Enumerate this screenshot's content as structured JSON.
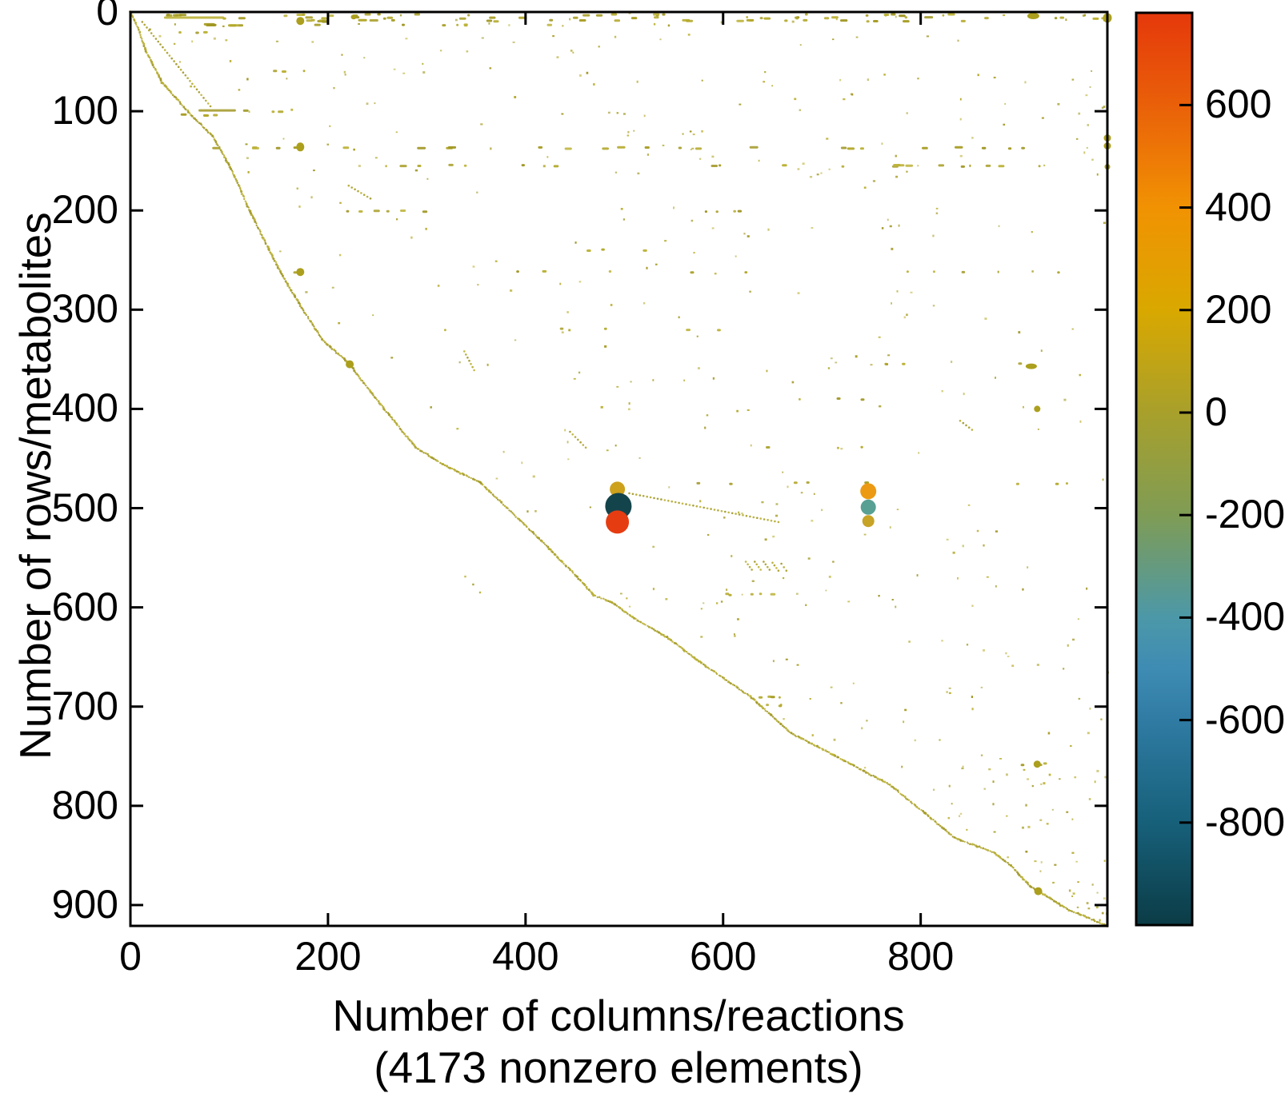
{
  "figure": {
    "background": "#ffffff"
  },
  "labels": {
    "ylabel": "Number of rows/metabolites",
    "xlabel_line1": "Number of columns/reactions",
    "xlabel_line2": "(4173 nonzero elements)"
  },
  "chart_data": {
    "type": "scatter",
    "subtype": "sparse-matrix-spy-plot",
    "title": "",
    "xlabel": "Number of columns/reactions",
    "xlabel_note": "(4173 nonzero elements)",
    "ylabel": "Number of rows/metabolites",
    "nonzero_elements": 4173,
    "grid": false,
    "x_axis": {
      "min": 0,
      "max": 989,
      "ticks": [
        0,
        200,
        400,
        600,
        800
      ]
    },
    "y_axis": {
      "min": 0,
      "max": 921,
      "ticks": [
        0,
        100,
        200,
        300,
        400,
        500,
        600,
        700,
        800,
        900
      ],
      "inverted": true
    },
    "colorbar": {
      "min": -1000,
      "max": 780,
      "ticks": [
        600,
        400,
        200,
        0,
        -200,
        -400,
        -600,
        -800
      ],
      "gradient_stops": [
        {
          "value": 780,
          "color": "#e5380b"
        },
        {
          "value": 600,
          "color": "#e96009"
        },
        {
          "value": 400,
          "color": "#f19203"
        },
        {
          "value": 200,
          "color": "#d9a800"
        },
        {
          "value": 0,
          "color": "#a8a02b"
        },
        {
          "value": -200,
          "color": "#7f9c55"
        },
        {
          "value": -400,
          "color": "#4c98a8"
        },
        {
          "value": -500,
          "color": "#3e8bb4"
        },
        {
          "value": -600,
          "color": "#2f7ba3"
        },
        {
          "value": -800,
          "color": "#17607a"
        },
        {
          "value": -1000,
          "color": "#0b3c46"
        }
      ]
    },
    "notable_points": [
      {
        "col": 493,
        "row": 481,
        "value": 230,
        "radius_px": 9.5,
        "color": "#cda11c"
      },
      {
        "col": 494,
        "row": 498,
        "value": -950,
        "radius_px": 16.5,
        "color": "#14444b"
      },
      {
        "col": 493,
        "row": 514,
        "value": 770,
        "radius_px": 14.5,
        "color": "#e63c12"
      },
      {
        "col": 747,
        "row": 483,
        "value": 330,
        "radius_px": 10,
        "color": "#ec9a14"
      },
      {
        "col": 747,
        "row": 499,
        "value": -380,
        "radius_px": 9.5,
        "color": "#58a093"
      },
      {
        "col": 747,
        "row": 513,
        "value": 160,
        "radius_px": 7.5,
        "color": "#c7a326"
      }
    ],
    "medium_points": [
      {
        "col": 172,
        "row": 9,
        "rx": 5,
        "ry": 5
      },
      {
        "col": 226,
        "row": 5,
        "rx": 3.5,
        "ry": 3
      },
      {
        "col": 914,
        "row": 4,
        "rx": 7.5,
        "ry": 4
      },
      {
        "col": 989,
        "row": 6,
        "rx": 5.5,
        "ry": 6
      },
      {
        "col": 172,
        "row": 136,
        "rx": 5,
        "ry": 5.5
      },
      {
        "col": 989,
        "row": 127,
        "rx": 4.5,
        "ry": 4.5
      },
      {
        "col": 989,
        "row": 135,
        "rx": 4.5,
        "ry": 4.5
      },
      {
        "col": 989,
        "row": 156,
        "rx": 3.5,
        "ry": 3.5
      },
      {
        "col": 172,
        "row": 262,
        "rx": 5,
        "ry": 5
      },
      {
        "col": 222,
        "row": 355,
        "rx": 5,
        "ry": 5
      },
      {
        "col": 912,
        "row": 357,
        "rx": 7,
        "ry": 3.5
      },
      {
        "col": 918,
        "row": 400,
        "rx": 4,
        "ry": 4
      },
      {
        "col": 918,
        "row": 758,
        "rx": 4.5,
        "ry": 4.5
      },
      {
        "col": 919,
        "row": 886,
        "rx": 5,
        "ry": 5
      }
    ],
    "envelope_points": [
      [
        0,
        0
      ],
      [
        8,
        16
      ],
      [
        15,
        38
      ],
      [
        32,
        71
      ],
      [
        39,
        79
      ],
      [
        59,
        101
      ],
      [
        83,
        125
      ],
      [
        101,
        156
      ],
      [
        121,
        201
      ],
      [
        140,
        239
      ],
      [
        154,
        266
      ],
      [
        172,
        296
      ],
      [
        194,
        330
      ],
      [
        222,
        355
      ],
      [
        252,
        394
      ],
      [
        289,
        439
      ],
      [
        320,
        458
      ],
      [
        354,
        474
      ],
      [
        413,
        530
      ],
      [
        451,
        568
      ],
      [
        469,
        588
      ],
      [
        486,
        594
      ],
      [
        510,
        611
      ],
      [
        543,
        630
      ],
      [
        575,
        654
      ],
      [
        591,
        665
      ],
      [
        629,
        691
      ],
      [
        669,
        727
      ],
      [
        712,
        749
      ],
      [
        769,
        779
      ],
      [
        805,
        808
      ],
      [
        834,
        832
      ],
      [
        874,
        847
      ],
      [
        891,
        860
      ],
      [
        912,
        882
      ],
      [
        919,
        886
      ],
      [
        950,
        905
      ],
      [
        989,
        921
      ]
    ],
    "dash_rows": [
      {
        "row": 3,
        "segments": [
          [
            35,
            62,
            5,
            3,
            8
          ],
          [
            150,
            985,
            24,
            2,
            8
          ]
        ]
      },
      {
        "row": 6,
        "segments": [
          [
            1,
            62,
            1,
            61,
            61
          ],
          [
            70,
            985,
            28,
            2,
            9
          ]
        ]
      },
      {
        "row": 9,
        "segments": [
          [
            130,
            310,
            8,
            3,
            10
          ],
          [
            320,
            985,
            18,
            2,
            8
          ]
        ]
      },
      {
        "row": 13,
        "segments": [
          [
            60,
            190,
            7,
            4,
            12
          ],
          [
            200,
            590,
            8,
            2,
            6
          ]
        ]
      },
      {
        "row": 21,
        "segments": [
          [
            40,
            75,
            3,
            2,
            5
          ]
        ]
      },
      {
        "row": 60,
        "segments": [
          [
            140,
            190,
            3,
            2,
            6
          ]
        ]
      },
      {
        "row": 100,
        "segments": [
          [
            46,
            84,
            1,
            38,
            38
          ],
          [
            92,
            150,
            3,
            3,
            6
          ]
        ]
      },
      {
        "row": 104,
        "segments": [
          [
            48,
            86,
            4,
            4,
            9
          ]
        ]
      },
      {
        "row": 137,
        "segments": [
          [
            60,
            980,
            25,
            3,
            9
          ]
        ]
      },
      {
        "row": 155,
        "segments": [
          [
            115,
            980,
            20,
            2,
            8
          ]
        ]
      },
      {
        "row": 201,
        "segments": [
          [
            180,
            430,
            6,
            3,
            7
          ],
          [
            520,
            700,
            4,
            2,
            6
          ]
        ]
      },
      {
        "row": 240,
        "segments": [
          [
            390,
            530,
            3,
            2,
            5
          ]
        ]
      },
      {
        "row": 262,
        "segments": [
          [
            150,
            640,
            6,
            2,
            6
          ],
          [
            700,
            980,
            4,
            2,
            5
          ]
        ]
      },
      {
        "row": 320,
        "segments": [
          [
            300,
            640,
            5,
            2,
            6
          ]
        ]
      },
      {
        "row": 355,
        "segments": [
          [
            700,
            905,
            4,
            2,
            6
          ]
        ]
      },
      {
        "row": 390,
        "segments": [
          [
            640,
            760,
            3,
            2,
            5
          ]
        ]
      },
      {
        "row": 439,
        "segments": [
          [
            620,
            740,
            3,
            2,
            5
          ]
        ]
      },
      {
        "row": 475,
        "segments": [
          [
            560,
            780,
            5,
            2,
            5
          ],
          [
            870,
            980,
            3,
            2,
            4
          ]
        ]
      },
      {
        "row": 587,
        "segments": [
          [
            560,
            660,
            5,
            3,
            6
          ]
        ]
      },
      {
        "row": 690,
        "segments": [
          [
            629,
            664,
            4,
            2,
            5
          ]
        ]
      },
      {
        "row": 699,
        "segments": [
          [
            636,
            664,
            3,
            2,
            4
          ]
        ]
      },
      {
        "row": 758,
        "segments": [
          [
            893,
            928,
            3,
            2,
            4
          ]
        ]
      }
    ],
    "diag_segments": [
      [
        12,
        10,
        81,
        95
      ],
      [
        221,
        175,
        243,
        188
      ],
      [
        338,
        342,
        348,
        361
      ],
      [
        445,
        423,
        461,
        439
      ],
      [
        505,
        485,
        656,
        514
      ],
      [
        840,
        412,
        852,
        421
      ],
      [
        623,
        554,
        629,
        562
      ],
      [
        632,
        554,
        638,
        562
      ],
      [
        641,
        554,
        647,
        562
      ],
      [
        650,
        555,
        656,
        563
      ],
      [
        659,
        556,
        664,
        563
      ]
    ],
    "extra_singles": [
      [
        338,
        568
      ],
      [
        346,
        576
      ],
      [
        353,
        584
      ]
    ],
    "random_scatter": {
      "seed": 1337,
      "count": 380,
      "extra_top_count": 80
    },
    "dot_color": "#b3a92c",
    "dot_color_variants": [
      "#b3a92c",
      "#a89e27",
      "#bcb236",
      "#a09623"
    ]
  }
}
